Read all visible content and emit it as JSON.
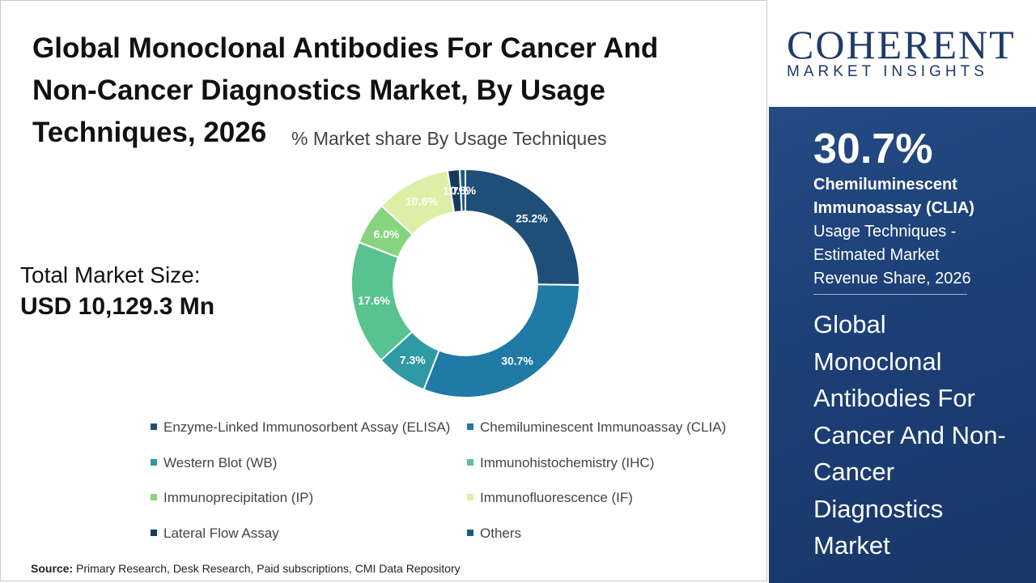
{
  "title": "Global  Monoclonal Antibodies For Cancer And\nNon-Cancer Diagnostics Market, By Usage\nTechniques, 2026",
  "total_market": {
    "label": "Total Market Size:",
    "value": "USD 10,129.3 Mn"
  },
  "source": {
    "label": "Source:",
    "text": " Primary Research, Desk Research, Paid subscriptions, CMI Data Repository"
  },
  "brand": {
    "logo_top": "COHERENT",
    "logo_bottom": "MARKET INSIGHTS"
  },
  "sidebar": {
    "percent": "30.7%",
    "segment": "Chemiluminescent Immunoassay (CLIA)",
    "description": " Usage Techniques - Estimated Market Revenue Share, 2026",
    "market_name": "Global Monoclonal Antibodies For Cancer And Non-Cancer Diagnostics Market"
  },
  "colors": {
    "sidebar_bg": "#1c3f76",
    "brand": "#1e3a6b"
  },
  "chart_data": {
    "type": "pie",
    "subtitle": "% Market share By Usage Techniques",
    "hole": 0.63,
    "start_angle_deg": 0,
    "direction": "clockwise",
    "categories": [
      "Enzyme-Linked Immunosorbent Assay (ELISA)",
      "Chemiluminescent Immunoassay (CLIA)",
      "Western Blot (WB)",
      "Immunohistochemistry (IHC)",
      "Immunoprecipitation (IP)",
      "Immunofluorescence (IF)",
      "Lateral Flow Assay",
      "Others"
    ],
    "values": [
      25.2,
      30.7,
      7.3,
      17.6,
      6.0,
      10.6,
      1.7,
      0.8
    ],
    "labels": [
      "25.2%",
      "30.7%",
      "7.3%",
      "17.6%",
      "6.0%",
      "10.6%",
      "1.7%",
      "0.8%"
    ],
    "colors": [
      "#1f4e79",
      "#1f7aa6",
      "#2e9aa3",
      "#59c38f",
      "#86d47e",
      "#dcefa6",
      "#173a5c",
      "#1f5a7e"
    ],
    "label_colors": [
      "#ffffff",
      "#ffffff",
      "#ffffff",
      "#ffffff",
      "#ffffff",
      "#ffffff",
      "#ffffff",
      "#ffffff"
    ],
    "legend": {
      "position": "bottom",
      "columns": 2
    }
  }
}
